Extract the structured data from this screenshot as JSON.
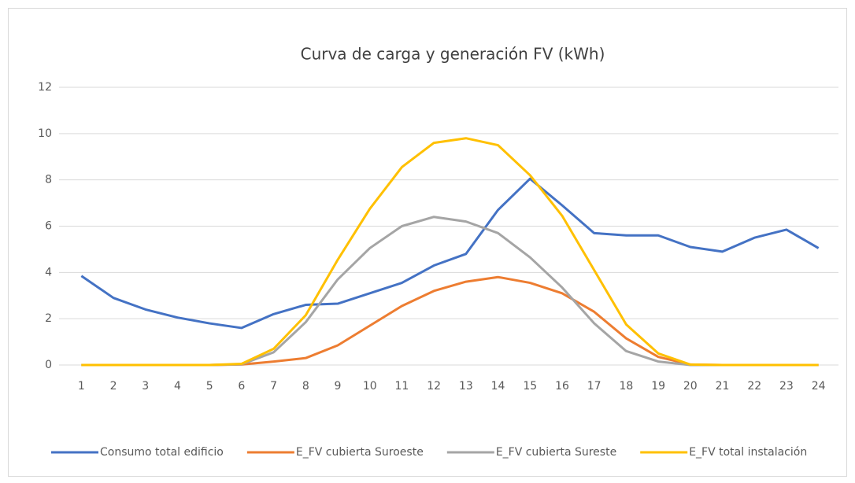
{
  "chart_data": {
    "type": "line",
    "title": "Curva de carga y generación FV (kWh)",
    "categories": [
      "1",
      "2",
      "3",
      "4",
      "5",
      "6",
      "7",
      "8",
      "9",
      "10",
      "11",
      "12",
      "13",
      "14",
      "15",
      "16",
      "17",
      "18",
      "19",
      "20",
      "21",
      "22",
      "23",
      "24"
    ],
    "series": [
      {
        "name": "Consumo total edificio",
        "color": "#4472c4",
        "values": [
          3.85,
          2.9,
          2.4,
          2.05,
          1.8,
          1.6,
          2.2,
          2.6,
          2.65,
          3.1,
          3.55,
          4.3,
          4.8,
          6.7,
          8.05,
          6.9,
          5.7,
          5.6,
          5.6,
          5.1,
          4.9,
          5.5,
          5.85,
          5.05
        ]
      },
      {
        "name": "E_FV cubierta Suroeste",
        "color": "#ed7d31",
        "values": [
          0,
          0,
          0,
          0,
          0,
          0.02,
          0.15,
          0.3,
          0.85,
          1.7,
          2.55,
          3.2,
          3.6,
          3.8,
          3.55,
          3.1,
          2.3,
          1.15,
          0.35,
          0.02,
          0,
          0,
          0,
          0
        ]
      },
      {
        "name": "E_FV cubierta Sureste",
        "color": "#a5a5a5",
        "values": [
          0,
          0,
          0,
          0,
          0,
          0.03,
          0.55,
          1.85,
          3.7,
          5.05,
          6.0,
          6.4,
          6.2,
          5.7,
          4.65,
          3.35,
          1.8,
          0.6,
          0.15,
          0,
          0,
          0,
          0,
          0
        ]
      },
      {
        "name": "E_FV total instalación",
        "color": "#ffc000",
        "values": [
          0,
          0,
          0,
          0,
          0,
          0.05,
          0.7,
          2.15,
          4.55,
          6.75,
          8.55,
          9.6,
          9.8,
          9.5,
          8.2,
          6.45,
          4.1,
          1.75,
          0.5,
          0.02,
          0,
          0,
          0,
          0
        ]
      }
    ],
    "ylim": [
      0,
      12
    ],
    "yticks": [
      0,
      2,
      4,
      6,
      8,
      10,
      12
    ],
    "grid": true,
    "legend": "bottom"
  }
}
